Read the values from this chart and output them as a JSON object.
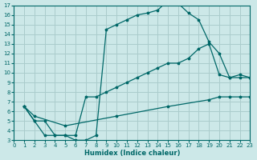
{
  "xlabel": "Humidex (Indice chaleur)",
  "background_color": "#cce8e8",
  "grid_color": "#aacccc",
  "line_color": "#006868",
  "xlim": [
    0,
    23
  ],
  "ylim": [
    3,
    17
  ],
  "xticks": [
    0,
    1,
    2,
    3,
    4,
    5,
    6,
    7,
    8,
    9,
    10,
    11,
    12,
    13,
    14,
    15,
    16,
    17,
    18,
    19,
    20,
    21,
    22,
    23
  ],
  "yticks": [
    3,
    4,
    5,
    6,
    7,
    8,
    9,
    10,
    11,
    12,
    13,
    14,
    15,
    16,
    17
  ],
  "curve1_x": [
    1,
    2,
    3,
    4,
    5,
    6,
    7,
    8,
    9,
    10,
    11,
    12,
    13,
    14,
    15,
    16,
    17,
    18,
    19,
    20,
    21,
    22,
    23
  ],
  "curve1_y": [
    6.5,
    5.0,
    5.0,
    3.5,
    3.5,
    3.0,
    3.0,
    3.5,
    14.5,
    15.0,
    15.5,
    16.0,
    16.2,
    16.5,
    17.5,
    17.2,
    16.2,
    15.5,
    13.2,
    12.0,
    9.5,
    9.8,
    9.5
  ],
  "curve2_x": [
    1,
    2,
    3,
    4,
    5,
    6,
    7,
    8,
    9,
    10,
    11,
    12,
    13,
    14,
    15,
    16,
    17,
    18,
    19,
    20,
    21,
    22,
    23
  ],
  "curve2_y": [
    6.5,
    5.0,
    3.5,
    3.5,
    3.5,
    3.5,
    7.5,
    7.5,
    8.0,
    8.5,
    9.0,
    9.5,
    10.0,
    10.5,
    11.0,
    11.0,
    11.5,
    12.5,
    13.0,
    9.8,
    9.5,
    9.5,
    9.5
  ],
  "curve3_x": [
    1,
    2,
    5,
    10,
    15,
    19,
    20,
    21,
    22,
    23
  ],
  "curve3_y": [
    6.5,
    5.5,
    4.5,
    5.5,
    6.5,
    7.2,
    7.5,
    7.5,
    7.5,
    7.5
  ]
}
